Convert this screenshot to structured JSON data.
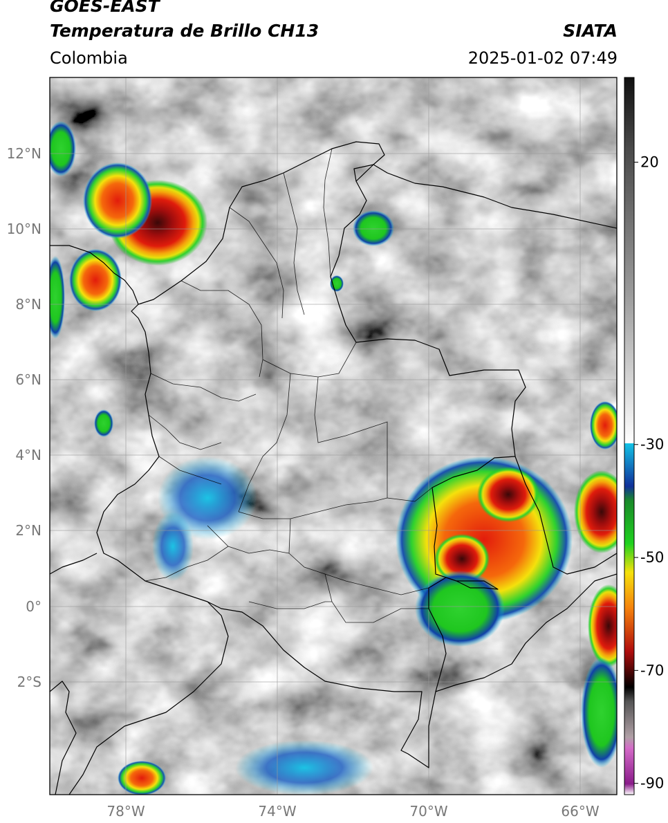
{
  "header": {
    "title_line1": "GOES-EAST",
    "title_line2": "Temperatura de Brillo CH13",
    "region": "Colombia",
    "source": "SIATA",
    "timestamp": "2025-01-02 07:49"
  },
  "map": {
    "lat_labels": [
      "12°N",
      "10°N",
      "8°N",
      "6°N",
      "4°N",
      "2°N",
      "0°",
      "2°S"
    ],
    "lon_labels": [
      "78°W",
      "74°W",
      "70°W",
      "66°W"
    ]
  },
  "colorbar": {
    "tick_labels": [
      "20",
      "-30",
      "-50",
      "-70",
      "-90"
    ],
    "ticks": [
      20,
      -30,
      -50,
      -70,
      -90
    ],
    "range": [
      -92,
      35
    ],
    "colors": {
      "gray_warm": "#101010",
      "gray_cold": "#ffffff",
      "cyan": "#13c3e6",
      "blue": "#10309a",
      "green": "#1fd21f",
      "yellow": "#f5e10c",
      "red": "#d81010",
      "black": "#000000",
      "pink": "#d46bc8",
      "purple": "#8a1c8a"
    }
  }
}
